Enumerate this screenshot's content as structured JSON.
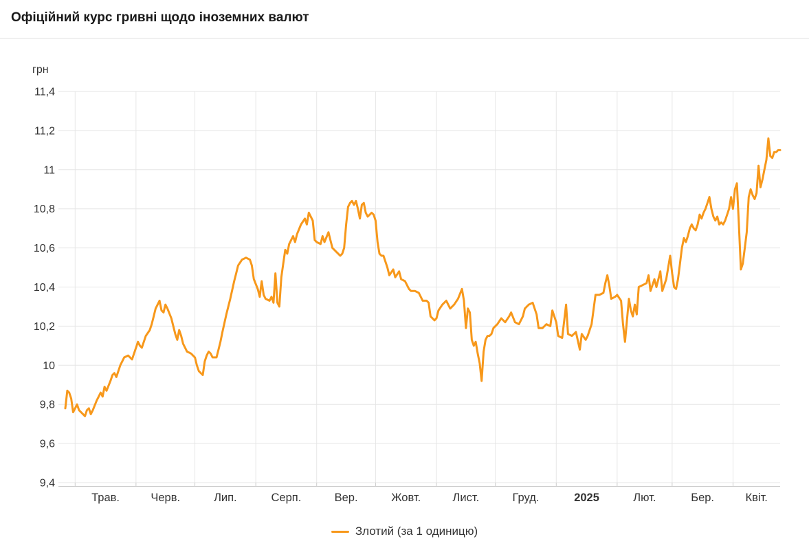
{
  "header": {
    "title": "Офіційний курс гривні щодо іноземних валют"
  },
  "colors": {
    "line": "#f7981b",
    "grid": "#e6e6e6",
    "axis_line": "#cccccc",
    "text": "#333333",
    "title": "#1a1a1a",
    "divider": "#e0e0e0"
  },
  "legend": {
    "position": "bottom-center"
  },
  "chart_data": {
    "type": "line",
    "title": "Офіційний курс гривні щодо іноземних валют",
    "xlabel": "",
    "ylabel": "грн",
    "ylim": [
      9.4,
      11.4
    ],
    "y_tick_step": 0.2,
    "grid": true,
    "legend_position": "bottom-center",
    "y_ticks": [
      {
        "v": 11.4,
        "label": "11,4"
      },
      {
        "v": 11.2,
        "label": "11,2"
      },
      {
        "v": 11.0,
        "label": "11"
      },
      {
        "v": 10.8,
        "label": "10,8"
      },
      {
        "v": 10.6,
        "label": "10,6"
      },
      {
        "v": 10.4,
        "label": "10,4"
      },
      {
        "v": 10.2,
        "label": "10,2"
      },
      {
        "v": 10.0,
        "label": "10"
      },
      {
        "v": 9.8,
        "label": "9,8"
      },
      {
        "v": 9.6,
        "label": "9,6"
      },
      {
        "v": 9.4,
        "label": "9,4"
      }
    ],
    "x_axis": {
      "total_days": 364,
      "months": [
        {
          "label": "Трав.",
          "start_day": 5,
          "bold": false
        },
        {
          "label": "Черв.",
          "start_day": 36,
          "bold": false
        },
        {
          "label": "Лип.",
          "start_day": 66,
          "bold": false
        },
        {
          "label": "Серп.",
          "start_day": 97,
          "bold": false
        },
        {
          "label": "Вер.",
          "start_day": 128,
          "bold": false
        },
        {
          "label": "Жовт.",
          "start_day": 158,
          "bold": false
        },
        {
          "label": "Лист.",
          "start_day": 189,
          "bold": false
        },
        {
          "label": "Груд.",
          "start_day": 219,
          "bold": false
        },
        {
          "label": "2025",
          "start_day": 250,
          "bold": true
        },
        {
          "label": "Лют.",
          "start_day": 281,
          "bold": false
        },
        {
          "label": "Бер.",
          "start_day": 309,
          "bold": false
        },
        {
          "label": "Квіт.",
          "start_day": 340,
          "bold": false
        }
      ]
    },
    "series": [
      {
        "name": "Злотий (за 1 одиницю)",
        "color": "#f7981b",
        "points": [
          [
            0,
            9.78
          ],
          [
            1,
            9.87
          ],
          [
            2,
            9.86
          ],
          [
            3,
            9.83
          ],
          [
            4,
            9.76
          ],
          [
            5,
            9.78
          ],
          [
            6,
            9.8
          ],
          [
            7,
            9.77
          ],
          [
            8,
            9.76
          ],
          [
            10,
            9.74
          ],
          [
            11,
            9.77
          ],
          [
            12,
            9.78
          ],
          [
            13,
            9.75
          ],
          [
            14,
            9.77
          ],
          [
            16,
            9.82
          ],
          [
            17,
            9.84
          ],
          [
            18,
            9.86
          ],
          [
            19,
            9.84
          ],
          [
            20,
            9.89
          ],
          [
            21,
            9.87
          ],
          [
            23,
            9.92
          ],
          [
            24,
            9.95
          ],
          [
            25,
            9.96
          ],
          [
            26,
            9.94
          ],
          [
            28,
            10.0
          ],
          [
            30,
            10.04
          ],
          [
            32,
            10.05
          ],
          [
            34,
            10.03
          ],
          [
            35,
            10.06
          ],
          [
            36,
            10.09
          ],
          [
            37,
            10.12
          ],
          [
            38,
            10.1
          ],
          [
            39,
            10.09
          ],
          [
            41,
            10.15
          ],
          [
            43,
            10.18
          ],
          [
            44,
            10.21
          ],
          [
            45,
            10.25
          ],
          [
            46,
            10.29
          ],
          [
            48,
            10.33
          ],
          [
            49,
            10.28
          ],
          [
            50,
            10.27
          ],
          [
            51,
            10.31
          ],
          [
            52,
            10.29
          ],
          [
            54,
            10.24
          ],
          [
            55,
            10.2
          ],
          [
            56,
            10.16
          ],
          [
            57,
            10.13
          ],
          [
            58,
            10.18
          ],
          [
            59,
            10.15
          ],
          [
            60,
            10.11
          ],
          [
            62,
            10.07
          ],
          [
            64,
            10.06
          ],
          [
            66,
            10.04
          ],
          [
            67,
            10.0
          ],
          [
            68,
            9.97
          ],
          [
            70,
            9.95
          ],
          [
            71,
            10.02
          ],
          [
            72,
            10.05
          ],
          [
            73,
            10.07
          ],
          [
            74,
            10.06
          ],
          [
            75,
            10.04
          ],
          [
            77,
            10.04
          ],
          [
            78,
            10.08
          ],
          [
            79,
            10.12
          ],
          [
            80,
            10.17
          ],
          [
            82,
            10.26
          ],
          [
            84,
            10.34
          ],
          [
            86,
            10.43
          ],
          [
            87,
            10.47
          ],
          [
            88,
            10.51
          ],
          [
            90,
            10.54
          ],
          [
            92,
            10.55
          ],
          [
            94,
            10.54
          ],
          [
            95,
            10.51
          ],
          [
            96,
            10.44
          ],
          [
            98,
            10.39
          ],
          [
            99,
            10.35
          ],
          [
            100,
            10.43
          ],
          [
            101,
            10.36
          ],
          [
            102,
            10.34
          ],
          [
            104,
            10.33
          ],
          [
            105,
            10.35
          ],
          [
            106,
            10.32
          ],
          [
            107,
            10.47
          ],
          [
            108,
            10.32
          ],
          [
            109,
            10.3
          ],
          [
            110,
            10.45
          ],
          [
            111,
            10.52
          ],
          [
            112,
            10.59
          ],
          [
            113,
            10.57
          ],
          [
            114,
            10.62
          ],
          [
            116,
            10.66
          ],
          [
            117,
            10.63
          ],
          [
            118,
            10.67
          ],
          [
            120,
            10.72
          ],
          [
            122,
            10.75
          ],
          [
            123,
            10.72
          ],
          [
            124,
            10.78
          ],
          [
            126,
            10.74
          ],
          [
            127,
            10.64
          ],
          [
            128,
            10.63
          ],
          [
            130,
            10.62
          ],
          [
            131,
            10.66
          ],
          [
            132,
            10.63
          ],
          [
            134,
            10.68
          ],
          [
            135,
            10.64
          ],
          [
            136,
            10.6
          ],
          [
            138,
            10.58
          ],
          [
            139,
            10.57
          ],
          [
            140,
            10.56
          ],
          [
            141,
            10.57
          ],
          [
            142,
            10.6
          ],
          [
            143,
            10.72
          ],
          [
            144,
            10.81
          ],
          [
            145,
            10.83
          ],
          [
            146,
            10.84
          ],
          [
            147,
            10.82
          ],
          [
            148,
            10.84
          ],
          [
            149,
            10.8
          ],
          [
            150,
            10.75
          ],
          [
            151,
            10.82
          ],
          [
            152,
            10.83
          ],
          [
            153,
            10.78
          ],
          [
            154,
            10.76
          ],
          [
            155,
            10.77
          ],
          [
            156,
            10.78
          ],
          [
            157,
            10.77
          ],
          [
            158,
            10.74
          ],
          [
            159,
            10.63
          ],
          [
            160,
            10.57
          ],
          [
            161,
            10.56
          ],
          [
            162,
            10.56
          ],
          [
            164,
            10.5
          ],
          [
            165,
            10.46
          ],
          [
            167,
            10.49
          ],
          [
            168,
            10.45
          ],
          [
            170,
            10.48
          ],
          [
            171,
            10.44
          ],
          [
            173,
            10.43
          ],
          [
            175,
            10.39
          ],
          [
            176,
            10.38
          ],
          [
            178,
            10.38
          ],
          [
            180,
            10.37
          ],
          [
            182,
            10.33
          ],
          [
            184,
            10.33
          ],
          [
            185,
            10.32
          ],
          [
            186,
            10.25
          ],
          [
            188,
            10.23
          ],
          [
            189,
            10.24
          ],
          [
            190,
            10.28
          ],
          [
            192,
            10.31
          ],
          [
            194,
            10.33
          ],
          [
            196,
            10.29
          ],
          [
            198,
            10.31
          ],
          [
            200,
            10.34
          ],
          [
            202,
            10.39
          ],
          [
            203,
            10.33
          ],
          [
            204,
            10.19
          ],
          [
            205,
            10.29
          ],
          [
            206,
            10.27
          ],
          [
            207,
            10.13
          ],
          [
            208,
            10.1
          ],
          [
            209,
            10.12
          ],
          [
            210,
            10.06
          ],
          [
            211,
            10.01
          ],
          [
            212,
            9.92
          ],
          [
            213,
            10.07
          ],
          [
            214,
            10.13
          ],
          [
            215,
            10.15
          ],
          [
            216,
            10.15
          ],
          [
            217,
            10.16
          ],
          [
            218,
            10.19
          ],
          [
            220,
            10.21
          ],
          [
            222,
            10.24
          ],
          [
            224,
            10.22
          ],
          [
            226,
            10.25
          ],
          [
            227,
            10.27
          ],
          [
            229,
            10.22
          ],
          [
            231,
            10.21
          ],
          [
            233,
            10.25
          ],
          [
            234,
            10.29
          ],
          [
            236,
            10.31
          ],
          [
            238,
            10.32
          ],
          [
            240,
            10.26
          ],
          [
            241,
            10.19
          ],
          [
            243,
            10.19
          ],
          [
            245,
            10.21
          ],
          [
            247,
            10.2
          ],
          [
            248,
            10.28
          ],
          [
            250,
            10.22
          ],
          [
            251,
            10.15
          ],
          [
            253,
            10.14
          ],
          [
            255,
            10.31
          ],
          [
            256,
            10.16
          ],
          [
            258,
            10.15
          ],
          [
            260,
            10.17
          ],
          [
            262,
            10.08
          ],
          [
            263,
            10.16
          ],
          [
            265,
            10.13
          ],
          [
            266,
            10.15
          ],
          [
            268,
            10.21
          ],
          [
            270,
            10.36
          ],
          [
            272,
            10.36
          ],
          [
            274,
            10.37
          ],
          [
            275,
            10.42
          ],
          [
            276,
            10.46
          ],
          [
            277,
            10.41
          ],
          [
            278,
            10.34
          ],
          [
            280,
            10.35
          ],
          [
            281,
            10.36
          ],
          [
            283,
            10.33
          ],
          [
            284,
            10.21
          ],
          [
            285,
            10.12
          ],
          [
            287,
            10.34
          ],
          [
            288,
            10.28
          ],
          [
            289,
            10.25
          ],
          [
            290,
            10.31
          ],
          [
            291,
            10.26
          ],
          [
            292,
            10.4
          ],
          [
            294,
            10.41
          ],
          [
            296,
            10.42
          ],
          [
            297,
            10.46
          ],
          [
            298,
            10.38
          ],
          [
            300,
            10.44
          ],
          [
            301,
            10.4
          ],
          [
            303,
            10.48
          ],
          [
            304,
            10.38
          ],
          [
            306,
            10.44
          ],
          [
            308,
            10.56
          ],
          [
            309,
            10.47
          ],
          [
            310,
            10.4
          ],
          [
            311,
            10.39
          ],
          [
            312,
            10.44
          ],
          [
            313,
            10.52
          ],
          [
            314,
            10.6
          ],
          [
            315,
            10.65
          ],
          [
            316,
            10.63
          ],
          [
            317,
            10.66
          ],
          [
            318,
            10.7
          ],
          [
            319,
            10.72
          ],
          [
            320,
            10.7
          ],
          [
            321,
            10.69
          ],
          [
            322,
            10.72
          ],
          [
            323,
            10.77
          ],
          [
            324,
            10.75
          ],
          [
            325,
            10.78
          ],
          [
            326,
            10.8
          ],
          [
            327,
            10.83
          ],
          [
            328,
            10.86
          ],
          [
            329,
            10.8
          ],
          [
            330,
            10.76
          ],
          [
            331,
            10.74
          ],
          [
            332,
            10.76
          ],
          [
            333,
            10.72
          ],
          [
            334,
            10.73
          ],
          [
            335,
            10.72
          ],
          [
            336,
            10.74
          ],
          [
            337,
            10.77
          ],
          [
            338,
            10.8
          ],
          [
            339,
            10.86
          ],
          [
            340,
            10.8
          ],
          [
            341,
            10.9
          ],
          [
            342,
            10.93
          ],
          [
            343,
            10.72
          ],
          [
            344,
            10.49
          ],
          [
            345,
            10.52
          ],
          [
            346,
            10.6
          ],
          [
            347,
            10.68
          ],
          [
            348,
            10.86
          ],
          [
            349,
            10.9
          ],
          [
            350,
            10.87
          ],
          [
            351,
            10.85
          ],
          [
            352,
            10.88
          ],
          [
            353,
            11.02
          ],
          [
            354,
            10.91
          ],
          [
            355,
            10.95
          ],
          [
            356,
            11.0
          ],
          [
            357,
            11.05
          ],
          [
            358,
            11.16
          ],
          [
            359,
            11.07
          ],
          [
            360,
            11.06
          ],
          [
            361,
            11.09
          ],
          [
            362,
            11.09
          ],
          [
            363,
            11.1
          ],
          [
            364,
            11.1
          ]
        ]
      }
    ]
  }
}
